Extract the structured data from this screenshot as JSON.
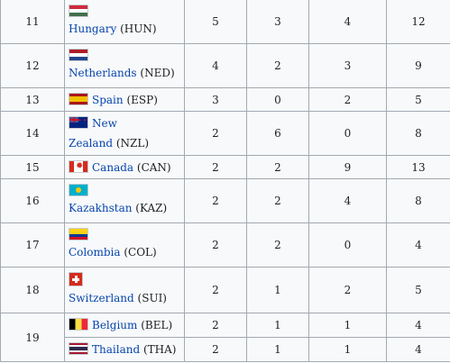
{
  "rows": [
    {
      "rank": "11",
      "flag": "flag-hungary",
      "nation": "Hungary",
      "code": "(HUN)",
      "gold": "5",
      "silver": "3",
      "bronze": "4",
      "total": "12"
    },
    {
      "rank": "12",
      "flag": "flag-netherlands",
      "nation": "Netherlands",
      "code": "(NED)",
      "gold": "4",
      "silver": "2",
      "bronze": "3",
      "total": "9"
    },
    {
      "rank": "13",
      "flag": "flag-spain",
      "nation": "Spain",
      "code": "(ESP)",
      "gold": "3",
      "silver": "0",
      "bronze": "2",
      "total": "5"
    },
    {
      "rank": "14",
      "flag": "flag-new-zealand",
      "nation_line1": "New",
      "nation_line2": "Zealand",
      "code": "(NZL)",
      "gold": "2",
      "silver": "6",
      "bronze": "0",
      "total": "8"
    },
    {
      "rank": "15",
      "flag": "flag-canada",
      "nation": "Canada",
      "code": "(CAN)",
      "gold": "2",
      "silver": "2",
      "bronze": "9",
      "total": "13"
    },
    {
      "rank": "16",
      "flag": "flag-kazakhstan",
      "nation": "Kazakhstan",
      "code": "(KAZ)",
      "gold": "2",
      "silver": "2",
      "bronze": "4",
      "total": "8"
    },
    {
      "rank": "17",
      "flag": "flag-colombia",
      "nation": "Colombia",
      "code": "(COL)",
      "gold": "2",
      "silver": "2",
      "bronze": "0",
      "total": "4"
    },
    {
      "rank": "18",
      "flag": "flag-switzerland",
      "nation": "Switzerland",
      "code": "(SUI)",
      "gold": "2",
      "silver": "1",
      "bronze": "2",
      "total": "5"
    },
    {
      "rank": "19",
      "flag": "flag-belgium",
      "nation": "Belgium",
      "code": "(BEL)",
      "gold": "2",
      "silver": "1",
      "bronze": "1",
      "total": "4"
    },
    {
      "rank": "",
      "flag": "flag-thailand",
      "nation": "Thailand",
      "code": "(THA)",
      "gold": "2",
      "silver": "1",
      "bronze": "1",
      "total": "4"
    }
  ]
}
